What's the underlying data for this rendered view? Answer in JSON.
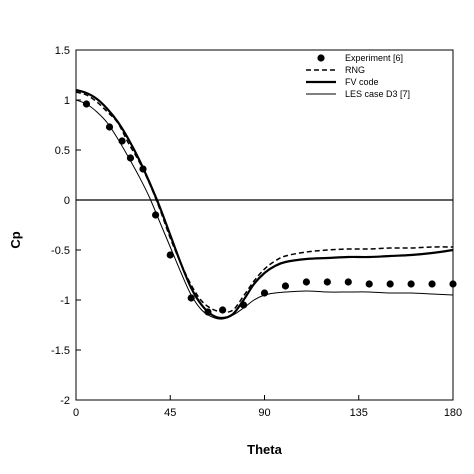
{
  "chart_data": {
    "type": "line",
    "xlabel": "Theta",
    "ylabel": "Cp",
    "xlim": [
      0,
      180
    ],
    "ylim": [
      -2,
      1.5
    ],
    "x_ticks": [
      0,
      45,
      90,
      135,
      180
    ],
    "y_ticks": [
      1.5,
      1,
      0.5,
      0,
      -0.5,
      -1,
      -1.5,
      -2
    ],
    "x_tick_labels": [
      "0",
      "45",
      "90",
      "135",
      "180"
    ],
    "y_tick_labels": [
      "1.5",
      "1",
      "0.5",
      "0",
      "-0.5",
      "-1",
      "-1.5",
      "-2"
    ],
    "reference_line_y": 0,
    "legend_position": "top-right",
    "series": [
      {
        "name": "Experiment [6]",
        "style": "markers",
        "x": [
          5,
          16,
          22,
          26,
          32,
          38,
          45,
          55,
          63,
          70,
          80,
          90,
          100,
          110,
          120,
          130,
          140,
          150,
          160,
          170,
          180
        ],
        "y": [
          0.96,
          0.73,
          0.59,
          0.42,
          0.31,
          -0.15,
          -0.55,
          -0.98,
          -1.12,
          -1.1,
          -1.05,
          -0.93,
          -0.86,
          -0.82,
          -0.82,
          -0.82,
          -0.84,
          -0.84,
          -0.84,
          -0.84,
          -0.84
        ]
      },
      {
        "name": "RNG",
        "style": "dashed",
        "x": [
          0,
          5,
          10,
          15,
          20,
          25,
          30,
          35,
          40,
          45,
          50,
          55,
          60,
          65,
          70,
          75,
          80,
          85,
          90,
          95,
          100,
          110,
          120,
          130,
          140,
          150,
          160,
          170,
          180
        ],
        "y": [
          1.08,
          1.05,
          0.98,
          0.88,
          0.77,
          0.57,
          0.39,
          0.17,
          -0.09,
          -0.38,
          -0.63,
          -0.85,
          -1.01,
          -1.09,
          -1.12,
          -1.1,
          -0.96,
          -0.81,
          -0.69,
          -0.61,
          -0.56,
          -0.52,
          -0.5,
          -0.49,
          -0.49,
          -0.48,
          -0.48,
          -0.47,
          -0.47
        ]
      },
      {
        "name": "FV code",
        "style": "thick",
        "x": [
          0,
          5,
          10,
          15,
          20,
          25,
          30,
          35,
          40,
          45,
          50,
          55,
          60,
          65,
          70,
          75,
          80,
          85,
          90,
          95,
          100,
          110,
          120,
          130,
          140,
          150,
          160,
          170,
          180
        ],
        "y": [
          1.1,
          1.07,
          1.01,
          0.91,
          0.78,
          0.61,
          0.41,
          0.18,
          -0.07,
          -0.35,
          -0.63,
          -0.88,
          -1.05,
          -1.15,
          -1.18,
          -1.14,
          -1.0,
          -0.84,
          -0.73,
          -0.66,
          -0.62,
          -0.59,
          -0.58,
          -0.57,
          -0.57,
          -0.56,
          -0.55,
          -0.53,
          -0.5
        ]
      },
      {
        "name": "LES case D3 [7]",
        "style": "thin",
        "x": [
          0,
          5,
          10,
          15,
          20,
          25,
          30,
          35,
          40,
          45,
          50,
          55,
          60,
          65,
          70,
          75,
          80,
          85,
          90,
          95,
          100,
          110,
          120,
          130,
          140,
          150,
          160,
          170,
          180
        ],
        "y": [
          1.0,
          0.96,
          0.88,
          0.77,
          0.61,
          0.43,
          0.24,
          0.03,
          -0.22,
          -0.47,
          -0.72,
          -0.95,
          -1.1,
          -1.17,
          -1.19,
          -1.15,
          -1.08,
          -1.0,
          -0.95,
          -0.93,
          -0.92,
          -0.91,
          -0.92,
          -0.92,
          -0.92,
          -0.93,
          -0.93,
          -0.94,
          -0.95
        ]
      }
    ]
  }
}
